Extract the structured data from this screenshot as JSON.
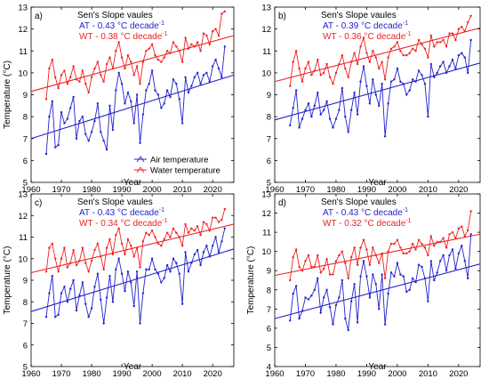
{
  "chart_data": [
    {
      "type": "line",
      "panel_label": "a)",
      "annotation_title": "Sen's Slope vaules",
      "annotations": [
        {
          "prefix": "AT - 0.43 ",
          "unit": "°C decade",
          "sup": "-1",
          "color": "#2222cc"
        },
        {
          "prefix": "WT - 0.38 ",
          "unit": "°C decade",
          "sup": "-1",
          "color": "#ee2222"
        }
      ],
      "legend": {
        "show": true,
        "placement": "bottom-right",
        "entries": [
          "Air temperature",
          "Water temperature"
        ]
      },
      "xlabel": "Year",
      "ylabel": "Temperature (°C)",
      "xlim": [
        1960,
        2027
      ],
      "ylim": [
        5,
        13
      ],
      "xticks": [
        1960,
        1970,
        1980,
        1990,
        2000,
        2010,
        2020
      ],
      "yticks": [
        5,
        6,
        7,
        8,
        9,
        10,
        11,
        12,
        13
      ],
      "x": [
        1965,
        1966,
        1967,
        1968,
        1969,
        1970,
        1971,
        1972,
        1973,
        1974,
        1975,
        1976,
        1977,
        1978,
        1979,
        1980,
        1981,
        1982,
        1983,
        1984,
        1985,
        1986,
        1987,
        1988,
        1989,
        1990,
        1991,
        1992,
        1993,
        1994,
        1995,
        1996,
        1997,
        1998,
        1999,
        2000,
        2001,
        2002,
        2003,
        2004,
        2005,
        2006,
        2007,
        2008,
        2009,
        2010,
        2011,
        2012,
        2013,
        2014,
        2015,
        2016,
        2017,
        2018,
        2019,
        2020,
        2021,
        2022,
        2023,
        2024
      ],
      "series": [
        {
          "name": "Air temperature",
          "color": "#2222cc",
          "values": [
            6.3,
            8.0,
            8.7,
            6.6,
            6.7,
            8.2,
            7.7,
            7.9,
            8.4,
            8.9,
            7.0,
            7.8,
            8.0,
            7.2,
            6.9,
            7.3,
            7.8,
            8.6,
            7.3,
            6.9,
            6.5,
            8.5,
            7.4,
            9.2,
            10.0,
            9.5,
            8.6,
            9.1,
            8.7,
            7.7,
            9.0,
            6.8,
            8.1,
            9.2,
            9.5,
            10.1,
            9.2,
            9.0,
            8.4,
            8.6,
            9.2,
            8.9,
            9.7,
            9.5,
            8.8,
            7.7,
            9.8,
            9.1,
            9.4,
            9.8,
            10.0,
            9.5,
            9.9,
            10.0,
            9.6,
            10.3,
            10.6,
            10.2,
            9.8,
            11.2
          ]
        },
        {
          "name": "Water temperature",
          "color": "#ee2222",
          "values": [
            8.8,
            10.2,
            10.6,
            9.8,
            9.3,
            9.9,
            10.1,
            9.5,
            9.8,
            10.3,
            9.7,
            9.6,
            10.1,
            9.5,
            9.1,
            9.8,
            10.2,
            10.5,
            9.9,
            9.6,
            10.4,
            10.7,
            10.2,
            11.0,
            11.4,
            10.7,
            10.2,
            10.8,
            10.5,
            9.9,
            10.3,
            9.5,
            10.5,
            11.0,
            11.1,
            11.3,
            10.8,
            10.6,
            10.5,
            10.7,
            11.0,
            10.9,
            11.4,
            11.2,
            11.0,
            10.5,
            11.6,
            11.1,
            11.3,
            11.2,
            11.4,
            11.0,
            11.8,
            11.7,
            11.3,
            11.9,
            12.0,
            11.7,
            12.7,
            12.8
          ]
        }
      ],
      "trend_lines": [
        {
          "series": "Air temperature",
          "color": "#2222cc",
          "from": [
            1960,
            7.0
          ],
          "to": [
            2027,
            9.9
          ]
        },
        {
          "series": "Water temperature",
          "color": "#ee2222",
          "from": [
            1960,
            9.15
          ],
          "to": [
            2027,
            11.7
          ]
        }
      ]
    },
    {
      "type": "line",
      "panel_label": "b)",
      "annotation_title": "Sen's Slope vaules",
      "annotations": [
        {
          "prefix": "AT - 0.39 ",
          "unit": "°C decade",
          "sup": "-1",
          "color": "#2222cc"
        },
        {
          "prefix": "WT - 0.36 ",
          "unit": "°C decade",
          "sup": "-1",
          "color": "#ee2222"
        }
      ],
      "legend": {
        "show": false
      },
      "xlabel": "Year",
      "ylabel": "",
      "xlim": [
        1960,
        2027
      ],
      "ylim": [
        5,
        13
      ],
      "xticks": [
        1960,
        1970,
        1980,
        1990,
        2000,
        2010,
        2020
      ],
      "yticks": [
        5,
        6,
        7,
        8,
        9,
        10,
        11,
        12,
        13
      ],
      "x": [
        1965,
        1966,
        1967,
        1968,
        1969,
        1970,
        1971,
        1972,
        1973,
        1974,
        1975,
        1976,
        1977,
        1978,
        1979,
        1980,
        1981,
        1982,
        1983,
        1984,
        1985,
        1986,
        1987,
        1988,
        1989,
        1990,
        1991,
        1992,
        1993,
        1994,
        1995,
        1996,
        1997,
        1998,
        1999,
        2000,
        2001,
        2002,
        2003,
        2004,
        2005,
        2006,
        2007,
        2008,
        2009,
        2010,
        2011,
        2012,
        2013,
        2014,
        2015,
        2016,
        2017,
        2018,
        2019,
        2020,
        2021,
        2022,
        2023,
        2024
      ],
      "series": [
        {
          "name": "Air temperature",
          "color": "#2222cc",
          "values": [
            7.6,
            8.4,
            9.2,
            7.5,
            7.9,
            8.3,
            8.6,
            8.0,
            8.5,
            9.1,
            8.1,
            8.3,
            8.7,
            7.9,
            7.5,
            7.9,
            8.3,
            9.3,
            8.0,
            7.3,
            8.3,
            9.1,
            8.1,
            9.6,
            10.3,
            9.4,
            8.6,
            9.7,
            9.0,
            8.5,
            9.5,
            7.1,
            8.6,
            9.6,
            9.7,
            10.2,
            9.6,
            9.5,
            9.0,
            9.2,
            9.7,
            9.6,
            10.1,
            9.9,
            9.5,
            8.0,
            10.4,
            9.8,
            10.0,
            10.3,
            10.5,
            10.0,
            10.3,
            10.6,
            10.2,
            10.8,
            10.9,
            10.7,
            10.0,
            11.5
          ]
        },
        {
          "name": "Water temperature",
          "color": "#ee2222",
          "values": [
            9.4,
            10.5,
            11.0,
            10.2,
            9.6,
            10.2,
            10.5,
            9.9,
            10.1,
            10.6,
            9.9,
            10.0,
            10.4,
            9.8,
            9.5,
            10.0,
            10.4,
            10.8,
            10.2,
            9.8,
            10.5,
            10.9,
            10.4,
            11.2,
            11.6,
            10.9,
            10.5,
            11.0,
            10.7,
            10.2,
            10.5,
            9.7,
            10.7,
            11.1,
            11.2,
            11.4,
            11.0,
            10.8,
            10.8,
            10.9,
            11.1,
            11.0,
            11.5,
            11.3,
            11.1,
            10.7,
            11.7,
            11.2,
            11.4,
            11.4,
            11.5,
            11.2,
            11.8,
            11.8,
            11.5,
            12.0,
            12.1,
            11.9,
            12.3,
            12.6
          ]
        }
      ],
      "trend_lines": [
        {
          "series": "Air temperature",
          "color": "#2222cc",
          "from": [
            1960,
            7.85
          ],
          "to": [
            2027,
            10.45
          ]
        },
        {
          "series": "Water temperature",
          "color": "#ee2222",
          "from": [
            1960,
            9.6
          ],
          "to": [
            2027,
            12.05
          ]
        }
      ]
    },
    {
      "type": "line",
      "panel_label": "c)",
      "annotation_title": "Sen's Slope vaules",
      "annotations": [
        {
          "prefix": "AT - 0.43 ",
          "unit": "°C decade",
          "sup": "-1",
          "color": "#2222cc"
        },
        {
          "prefix": "WT - 0.34 ",
          "unit": "°C decade",
          "sup": "-1",
          "color": "#ee2222"
        }
      ],
      "legend": {
        "show": false
      },
      "xlabel": "Year",
      "ylabel": "Temperature (°C)",
      "xlim": [
        1960,
        2027
      ],
      "ylim": [
        5,
        13
      ],
      "xticks": [
        1960,
        1970,
        1980,
        1990,
        2000,
        2010,
        2020
      ],
      "yticks": [
        5,
        6,
        7,
        8,
        9,
        10,
        11,
        12,
        13
      ],
      "x": [
        1965,
        1966,
        1967,
        1968,
        1969,
        1970,
        1971,
        1972,
        1973,
        1974,
        1975,
        1976,
        1977,
        1978,
        1979,
        1980,
        1981,
        1982,
        1983,
        1984,
        1985,
        1986,
        1987,
        1988,
        1989,
        1990,
        1991,
        1992,
        1993,
        1994,
        1995,
        1996,
        1997,
        1998,
        1999,
        2000,
        2001,
        2002,
        2003,
        2004,
        2005,
        2006,
        2007,
        2008,
        2009,
        2010,
        2011,
        2012,
        2013,
        2014,
        2015,
        2016,
        2017,
        2018,
        2019,
        2020,
        2021,
        2022,
        2023,
        2024
      ],
      "series": [
        {
          "name": "Air temperature",
          "color": "#2222cc",
          "values": [
            7.3,
            8.4,
            9.2,
            7.3,
            7.4,
            8.4,
            8.7,
            8.0,
            8.6,
            9.0,
            7.6,
            8.3,
            8.9,
            7.9,
            7.3,
            7.7,
            8.7,
            9.3,
            8.1,
            7.0,
            8.2,
            9.2,
            8.0,
            9.5,
            10.0,
            9.3,
            8.5,
            9.4,
            8.9,
            7.8,
            9.4,
            7.0,
            8.4,
            9.5,
            9.5,
            10.0,
            9.5,
            9.3,
            8.9,
            9.1,
            9.7,
            9.4,
            10.0,
            9.8,
            9.3,
            7.9,
            10.3,
            9.4,
            9.8,
            10.2,
            10.4,
            9.7,
            10.3,
            10.6,
            10.1,
            10.6,
            11.0,
            10.3,
            10.8,
            11.4
          ]
        },
        {
          "name": "Water temperature",
          "color": "#ee2222",
          "values": [
            9.4,
            10.5,
            10.7,
            10.0,
            9.4,
            10.0,
            10.5,
            9.6,
            9.8,
            10.4,
            9.7,
            9.9,
            10.5,
            9.8,
            9.4,
            9.9,
            10.4,
            10.7,
            10.1,
            9.5,
            10.5,
            10.9,
            10.2,
            11.1,
            11.4,
            10.7,
            10.2,
            10.9,
            10.6,
            10.1,
            10.5,
            9.6,
            10.8,
            11.2,
            11.1,
            11.3,
            11.0,
            10.7,
            10.6,
            10.9,
            11.2,
            11.0,
            11.4,
            11.2,
            11.0,
            10.6,
            11.6,
            11.2,
            11.4,
            11.3,
            11.5,
            11.1,
            11.7,
            11.6,
            11.3,
            11.9,
            11.9,
            11.7,
            11.8,
            12.3
          ]
        }
      ],
      "trend_lines": [
        {
          "series": "Air temperature",
          "color": "#2222cc",
          "from": [
            1960,
            7.55
          ],
          "to": [
            2027,
            10.45
          ]
        },
        {
          "series": "Water temperature",
          "color": "#ee2222",
          "from": [
            1960,
            9.35
          ],
          "to": [
            2027,
            11.6
          ]
        }
      ]
    },
    {
      "type": "line",
      "panel_label": "d)",
      "annotation_title": "Sen's Slope vaules",
      "annotations": [
        {
          "prefix": "AT - 0.43 ",
          "unit": "°C decade",
          "sup": "-1",
          "color": "#2222cc"
        },
        {
          "prefix": "WT - 0.32 ",
          "unit": "°C decade",
          "sup": "-1",
          "color": "#ee2222"
        }
      ],
      "legend": {
        "show": false
      },
      "xlabel": "Year",
      "ylabel": "Temperature (°C)",
      "xlim": [
        1960,
        2027
      ],
      "ylim": [
        4,
        13
      ],
      "xticks": [
        1960,
        1970,
        1980,
        1990,
        2000,
        2010,
        2020
      ],
      "yticks": [
        4,
        5,
        6,
        7,
        8,
        9,
        10,
        11,
        12,
        13
      ],
      "x": [
        1965,
        1966,
        1967,
        1968,
        1969,
        1970,
        1971,
        1972,
        1973,
        1974,
        1975,
        1976,
        1977,
        1978,
        1979,
        1980,
        1981,
        1982,
        1983,
        1984,
        1985,
        1986,
        1987,
        1988,
        1989,
        1990,
        1991,
        1992,
        1993,
        1994,
        1995,
        1996,
        1997,
        1998,
        1999,
        2000,
        2001,
        2002,
        2003,
        2004,
        2005,
        2006,
        2007,
        2008,
        2009,
        2010,
        2011,
        2012,
        2013,
        2014,
        2015,
        2016,
        2017,
        2018,
        2019,
        2020,
        2021,
        2022,
        2023,
        2024
      ],
      "series": [
        {
          "name": "Air temperature",
          "color": "#2222cc",
          "values": [
            6.4,
            7.8,
            8.2,
            6.5,
            6.9,
            7.6,
            7.5,
            7.7,
            8.0,
            8.6,
            6.8,
            7.6,
            8.0,
            7.1,
            6.2,
            7.2,
            7.6,
            8.5,
            6.5,
            5.9,
            7.4,
            8.3,
            6.3,
            8.7,
            9.5,
            8.7,
            7.6,
            8.8,
            8.3,
            7.0,
            8.8,
            6.2,
            7.8,
            8.9,
            8.7,
            9.4,
            8.8,
            8.7,
            7.9,
            8.0,
            8.6,
            8.4,
            9.3,
            9.2,
            8.6,
            7.4,
            9.5,
            8.5,
            8.9,
            9.5,
            9.8,
            9.0,
            9.8,
            10.1,
            9.1,
            9.9,
            10.3,
            9.5,
            8.6,
            10.9
          ]
        },
        {
          "name": "Water temperature",
          "color": "#ee2222",
          "values": [
            8.5,
            9.7,
            10.1,
            9.2,
            9.0,
            9.5,
            9.8,
            9.2,
            9.2,
            9.8,
            8.9,
            9.1,
            9.6,
            8.8,
            8.8,
            9.5,
            9.8,
            10.0,
            9.4,
            8.6,
            9.7,
            10.2,
            9.3,
            10.2,
            10.6,
            10.1,
            9.3,
            10.2,
            9.8,
            9.4,
            9.9,
            8.6,
            10.0,
            10.4,
            10.4,
            10.6,
            10.2,
            9.9,
            9.9,
            10.0,
            10.4,
            10.1,
            10.6,
            10.4,
            10.2,
            9.8,
            10.8,
            10.3,
            10.5,
            10.5,
            10.7,
            10.2,
            10.9,
            11.0,
            10.7,
            11.2,
            11.3,
            10.8,
            11.1,
            12.1
          ]
        }
      ],
      "trend_lines": [
        {
          "series": "Air temperature",
          "color": "#2222cc",
          "from": [
            1960,
            6.5
          ],
          "to": [
            2027,
            9.35
          ]
        },
        {
          "series": "Water temperature",
          "color": "#ee2222",
          "from": [
            1960,
            8.75
          ],
          "to": [
            2027,
            10.9
          ]
        }
      ]
    }
  ]
}
